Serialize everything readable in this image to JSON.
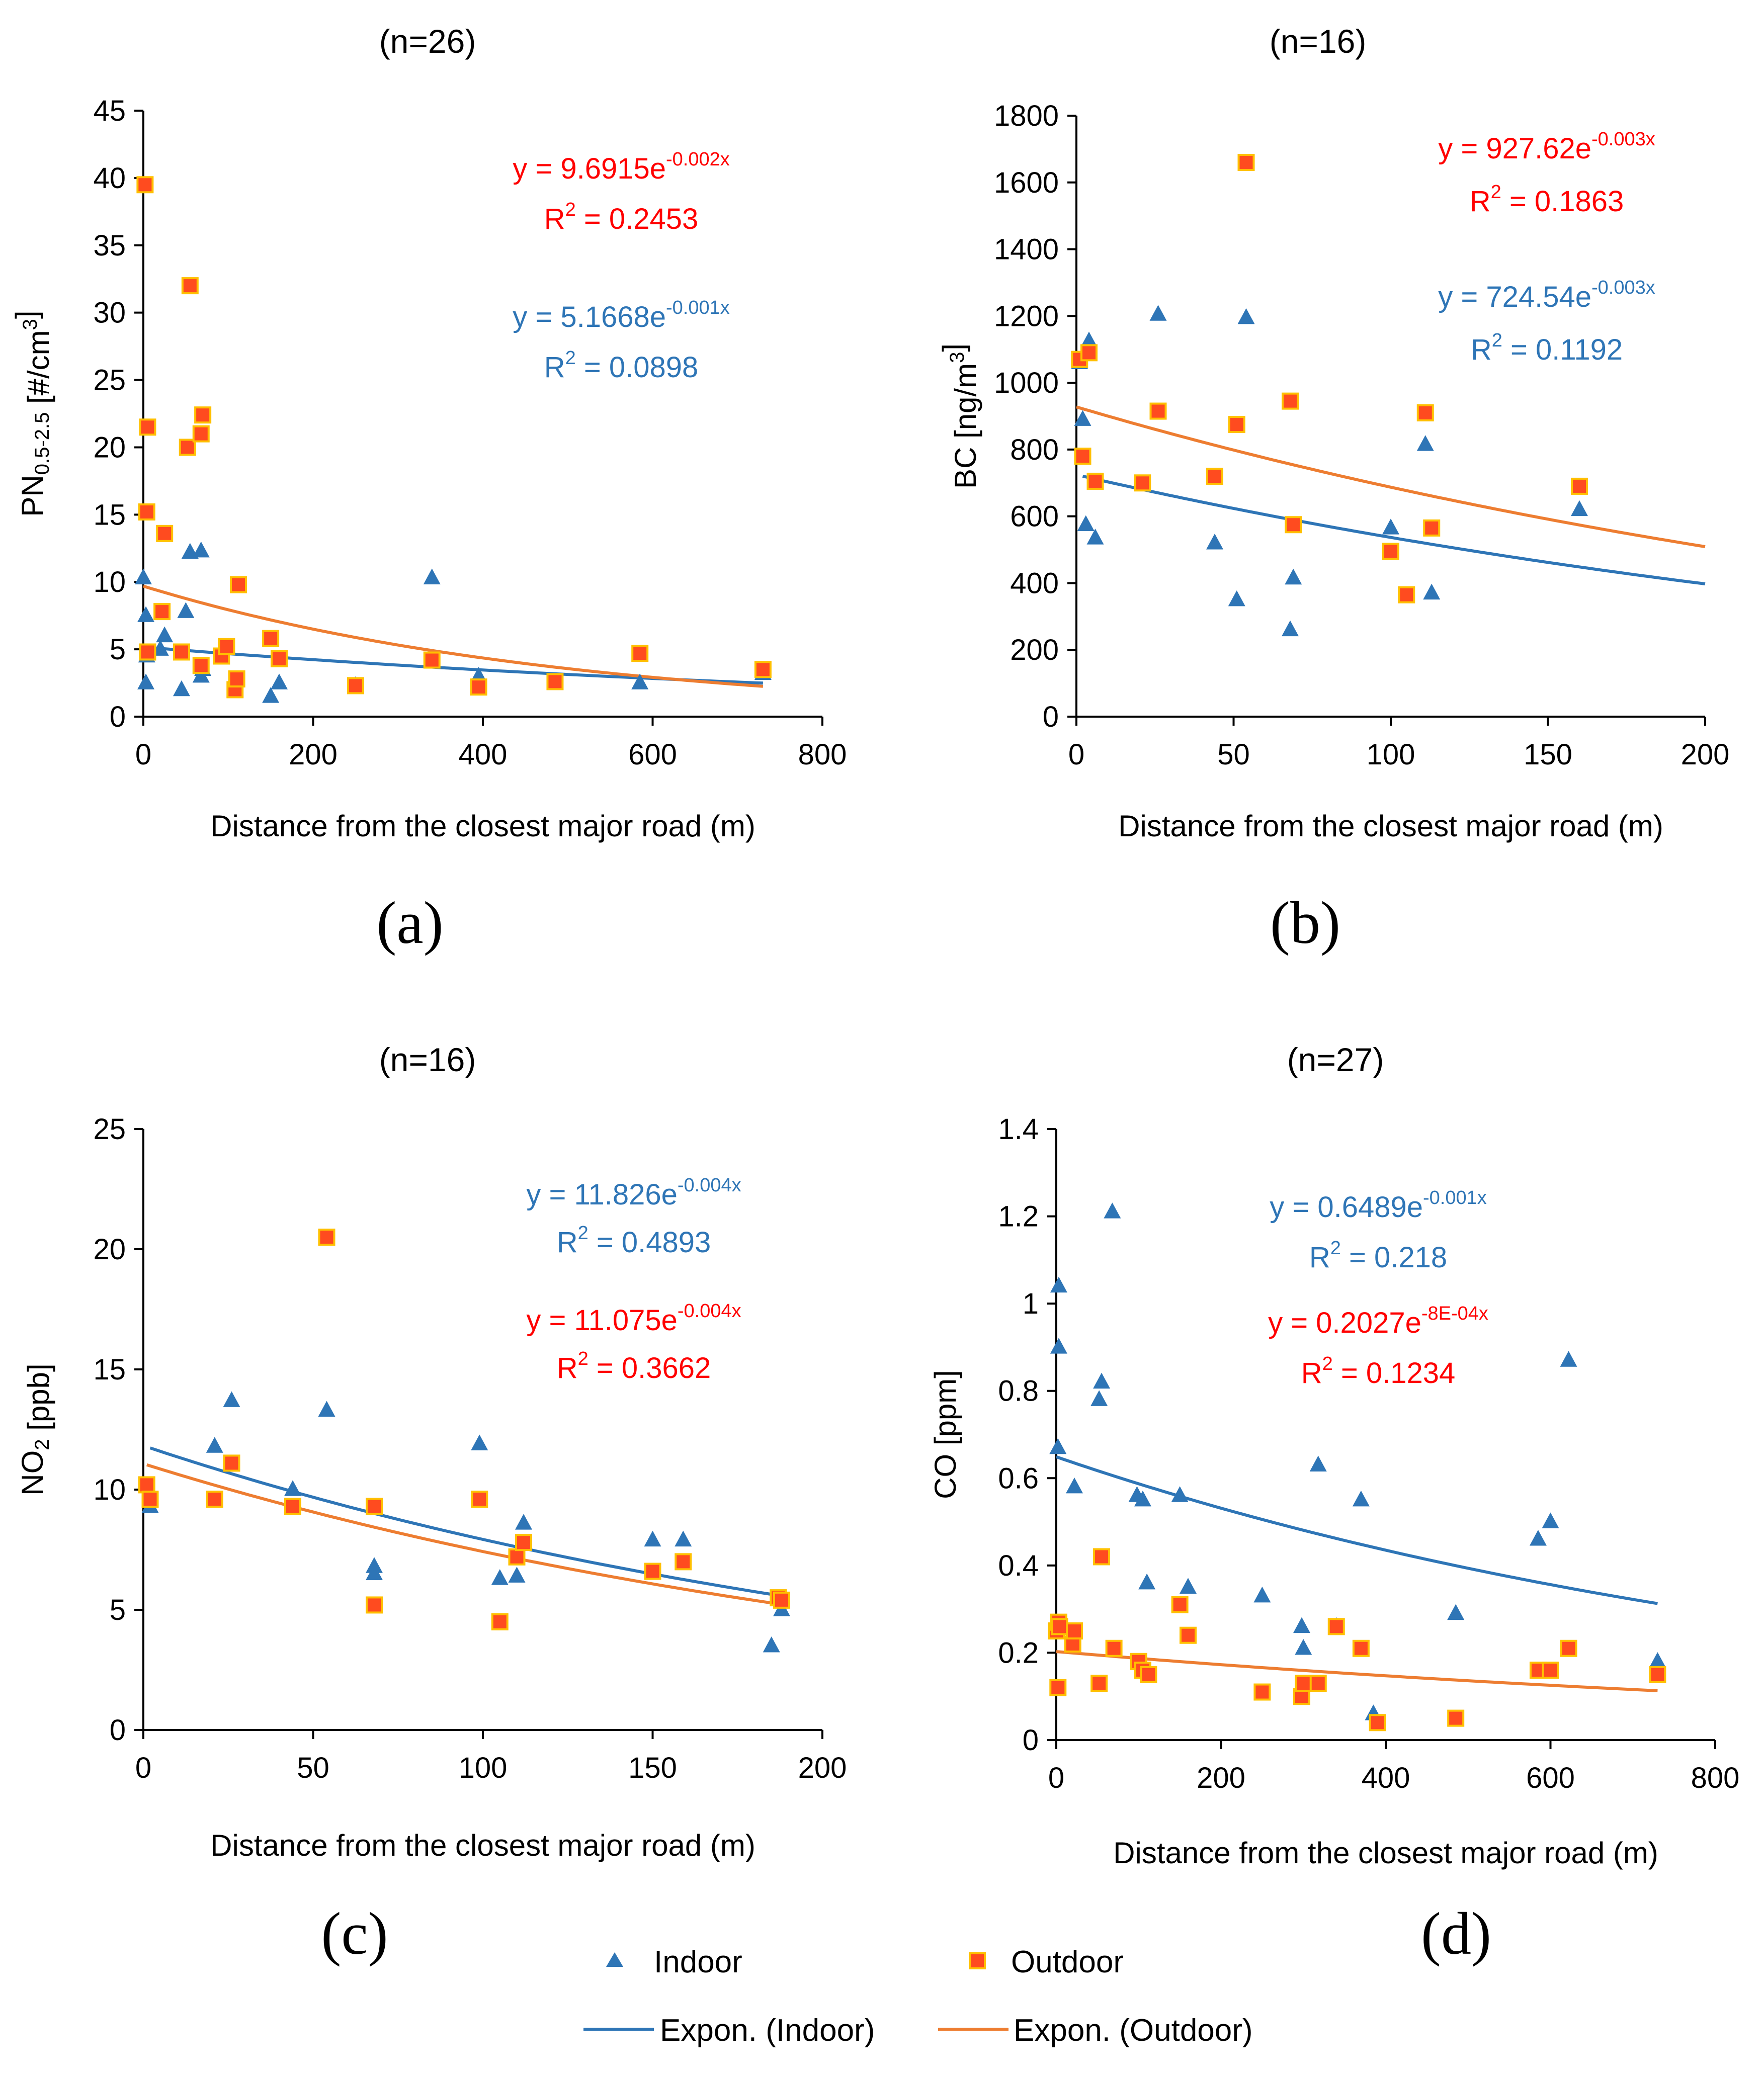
{
  "colors": {
    "indoor": "#2E75B6",
    "outdoor_fill": "#FF4B1F",
    "outdoor_edge": "#FFC000",
    "indoor_trend": "#2E75B6",
    "outdoor_trend": "#ED7D31",
    "eq_red": "#FF0000",
    "eq_blue": "#2E75B6"
  },
  "legend": {
    "indoor": "Indoor",
    "outdoor": "Outdoor",
    "trend_indoor": "Expon. (Indoor)",
    "trend_outdoor": "Expon. (Outdoor)"
  },
  "chart_data": [
    {
      "type": "scatter",
      "panel_label": "(a)",
      "title": "(n=26)",
      "xlabel": "Distance from the  closest major road (m)",
      "ylabel_parts": [
        [
          "PN",
          ""
        ],
        [
          "0.5-2.5",
          "sub"
        ],
        [
          " [#/cm",
          ""
        ],
        [
          "3",
          "sup"
        ],
        [
          "]",
          ""
        ]
      ],
      "xlim": [
        0,
        800
      ],
      "ylim": [
        0,
        45
      ],
      "xticks": [
        0,
        200,
        400,
        600,
        800
      ],
      "yticks": [
        0,
        5,
        10,
        15,
        20,
        25,
        30,
        35,
        40,
        45
      ],
      "series": [
        {
          "name": "Indoor",
          "x": [
            0,
            3,
            3,
            4,
            20,
            25,
            45,
            50,
            55,
            68,
            68,
            70,
            108,
            150,
            160,
            250,
            340,
            395,
            585,
            730
          ],
          "y": [
            10.3,
            7.5,
            2.5,
            4.5,
            5,
            6,
            2,
            7.8,
            12.2,
            12.3,
            3,
            3.5,
            2,
            1.5,
            2.5,
            2.3,
            10.3,
            3,
            2.5,
            3.2
          ]
        },
        {
          "name": "Outdoor",
          "x": [
            2,
            4,
            5,
            5,
            22,
            25,
            45,
            52,
            55,
            68,
            68,
            70,
            92,
            98,
            108,
            110,
            112,
            150,
            160,
            250,
            340,
            395,
            485,
            585,
            730
          ],
          "y": [
            39.5,
            15.2,
            21.5,
            4.8,
            7.8,
            13.6,
            4.8,
            20,
            32,
            21,
            3.8,
            22.4,
            4.5,
            5.2,
            2,
            2.8,
            9.8,
            5.8,
            4.3,
            2.3,
            4.2,
            2.2,
            2.6,
            4.7,
            3.5
          ]
        }
      ],
      "trendlines": [
        {
          "name": "Expon. (Indoor)",
          "a": 5.1668,
          "b": -0.001,
          "x_range": [
            0,
            730
          ]
        },
        {
          "name": "Expon. (Outdoor)",
          "a": 9.6915,
          "b": -0.002,
          "x_range": [
            0,
            730
          ]
        }
      ],
      "equations": [
        {
          "series": "outdoor",
          "coef": "y = 9.6915e",
          "exp": "-0.002x",
          "r2_label": "R",
          "r2_exp": "2",
          "r2_value": " = 0.2453"
        },
        {
          "series": "indoor",
          "coef": "y = 5.1668e",
          "exp": "-0.001x",
          "r2_label": "R",
          "r2_exp": "2",
          "r2_value": " = 0.0898"
        }
      ]
    },
    {
      "type": "scatter",
      "panel_label": "(b)",
      "title": "(n=16)",
      "xlabel": "Distance from the  closest major road (m)",
      "ylabel_parts": [
        [
          "BC [ng/m",
          ""
        ],
        [
          "3",
          "sup"
        ],
        [
          "]",
          ""
        ]
      ],
      "xlim": [
        0,
        200
      ],
      "ylim": [
        0,
        1800
      ],
      "xticks": [
        0,
        50,
        100,
        150,
        200
      ],
      "yticks": [
        0,
        200,
        400,
        600,
        800,
        1000,
        1200,
        1400,
        1600,
        1800
      ],
      "series": [
        {
          "name": "Indoor",
          "x": [
            1,
            2,
            3,
            4,
            6,
            26,
            44,
            51,
            54,
            68,
            69,
            100,
            111,
            113,
            160
          ],
          "y": [
            1060,
            890,
            575,
            1125,
            535,
            1205,
            520,
            350,
            1195,
            260,
            415,
            565,
            815,
            370,
            620
          ]
        },
        {
          "name": "Outdoor",
          "x": [
            1,
            2,
            4,
            6,
            21,
            26,
            44,
            51,
            54,
            68,
            69,
            100,
            105,
            111,
            113,
            160
          ],
          "y": [
            1070,
            780,
            1090,
            705,
            700,
            915,
            720,
            875,
            1660,
            945,
            575,
            495,
            365,
            910,
            565,
            690
          ]
        }
      ],
      "trendlines": [
        {
          "name": "Expon. (Indoor)",
          "a": 724.54,
          "b": -0.003,
          "x_range": [
            2,
            200
          ]
        },
        {
          "name": "Expon. (Outdoor)",
          "a": 927.62,
          "b": -0.003,
          "x_range": [
            0,
            200
          ]
        }
      ],
      "equations": [
        {
          "series": "outdoor",
          "coef": "y = 927.62e",
          "exp": "-0.003x",
          "r2_label": "R",
          "r2_exp": "2",
          "r2_value": " = 0.1863"
        },
        {
          "series": "indoor",
          "coef": "y = 724.54e",
          "exp": "-0.003x",
          "r2_label": "R",
          "r2_exp": "2",
          "r2_value": " = 0.1192"
        }
      ]
    },
    {
      "type": "scatter",
      "panel_label": "(c)",
      "title": "(n=16)",
      "xlabel": "Distance from the  closest major road (m)",
      "ylabel_parts": [
        [
          "NO",
          ""
        ],
        [
          "2",
          "sub"
        ],
        [
          " [ppb]",
          ""
        ]
      ],
      "xlim": [
        0,
        200
      ],
      "ylim": [
        0,
        25
      ],
      "xticks": [
        0,
        50,
        100,
        150,
        200
      ],
      "yticks": [
        0,
        5,
        10,
        15,
        20,
        25
      ],
      "series": [
        {
          "name": "Indoor",
          "x": [
            2,
            21,
            26,
            44,
            54,
            68,
            68,
            99,
            105,
            110,
            112,
            150,
            159,
            185,
            188
          ],
          "y": [
            9.3,
            11.8,
            13.7,
            10,
            13.3,
            6.8,
            6.5,
            11.9,
            6.3,
            6.4,
            8.6,
            7.9,
            7.9,
            3.5,
            5
          ]
        },
        {
          "name": "Outdoor",
          "x": [
            1,
            2,
            21,
            26,
            44,
            54,
            68,
            68,
            99,
            105,
            110,
            112,
            150,
            159,
            187,
            188
          ],
          "y": [
            10.2,
            9.6,
            9.6,
            11.1,
            9.3,
            20.5,
            9.3,
            5.2,
            9.6,
            4.5,
            7.2,
            7.8,
            6.6,
            7,
            5.5,
            5.4
          ]
        }
      ],
      "trendlines": [
        {
          "name": "Expon. (Indoor)",
          "a": 11.826,
          "b": -0.004,
          "x_range": [
            2,
            188
          ]
        },
        {
          "name": "Expon. (Outdoor)",
          "a": 11.075,
          "b": -0.004,
          "x_range": [
            1,
            188
          ]
        }
      ],
      "equations": [
        {
          "series": "indoor",
          "coef": "y = 11.826e",
          "exp": "-0.004x",
          "r2_label": "R",
          "r2_exp": "2",
          "r2_value": " = 0.4893"
        },
        {
          "series": "outdoor",
          "coef": "y = 11.075e",
          "exp": "-0.004x",
          "r2_label": "R",
          "r2_exp": "2",
          "r2_value": " = 0.3662"
        }
      ]
    },
    {
      "type": "scatter",
      "panel_label": "(d)",
      "title": "(n=27)",
      "xlabel": "Distance from the  closest major road (m)",
      "ylabel_parts": [
        [
          "CO [ppm]",
          ""
        ]
      ],
      "xlim": [
        0,
        800
      ],
      "ylim": [
        0,
        1.4
      ],
      "xticks": [
        0,
        200,
        400,
        600,
        800
      ],
      "yticks": [
        0,
        0.2,
        0.4,
        0.6,
        0.8,
        1,
        1.2,
        1.4
      ],
      "ytick_labels": [
        "0",
        "0.2",
        "0.4",
        "0.6",
        "0.8",
        "1",
        "1.2",
        "1.4"
      ],
      "series": [
        {
          "name": "Indoor",
          "x": [
            2,
            3,
            3,
            22,
            52,
            55,
            68,
            98,
            105,
            110,
            150,
            160,
            250,
            298,
            300,
            318,
            340,
            370,
            385,
            485,
            585,
            600,
            622,
            730
          ],
          "y": [
            0.67,
            1.04,
            0.9,
            0.58,
            0.78,
            0.82,
            1.21,
            0.56,
            0.55,
            0.36,
            0.56,
            0.35,
            0.33,
            0.26,
            0.21,
            0.63,
            0.26,
            0.55,
            0.06,
            0.29,
            0.46,
            0.5,
            0.87,
            0.18
          ]
        },
        {
          "name": "Outdoor",
          "x": [
            0,
            2,
            3,
            4,
            20,
            22,
            52,
            55,
            70,
            100,
            105,
            112,
            150,
            160,
            250,
            298,
            300,
            318,
            340,
            370,
            390,
            485,
            585,
            600,
            622,
            730
          ],
          "y": [
            0.25,
            0.12,
            0.27,
            0.26,
            0.22,
            0.25,
            0.13,
            0.42,
            0.21,
            0.18,
            0.16,
            0.15,
            0.31,
            0.24,
            0.11,
            0.1,
            0.13,
            0.13,
            0.26,
            0.21,
            0.04,
            0.05,
            0.16,
            0.16,
            0.21,
            0.15
          ]
        }
      ],
      "trendlines": [
        {
          "name": "Expon. (Indoor)",
          "a": 0.6489,
          "b": -0.001,
          "x_range": [
            0,
            730
          ]
        },
        {
          "name": "Expon. (Outdoor)",
          "a": 0.2027,
          "b": -0.0008,
          "x_range": [
            0,
            730
          ]
        }
      ],
      "equations": [
        {
          "series": "indoor",
          "coef": "y = 0.6489e",
          "exp": "-0.001x",
          "r2_label": "R",
          "r2_exp": "2",
          "r2_value": " = 0.218"
        },
        {
          "series": "outdoor",
          "coef": "y = 0.2027e",
          "exp": "-8E-04x",
          "r2_label": "R",
          "r2_exp": "2",
          "r2_value": " = 0.1234"
        }
      ]
    }
  ]
}
